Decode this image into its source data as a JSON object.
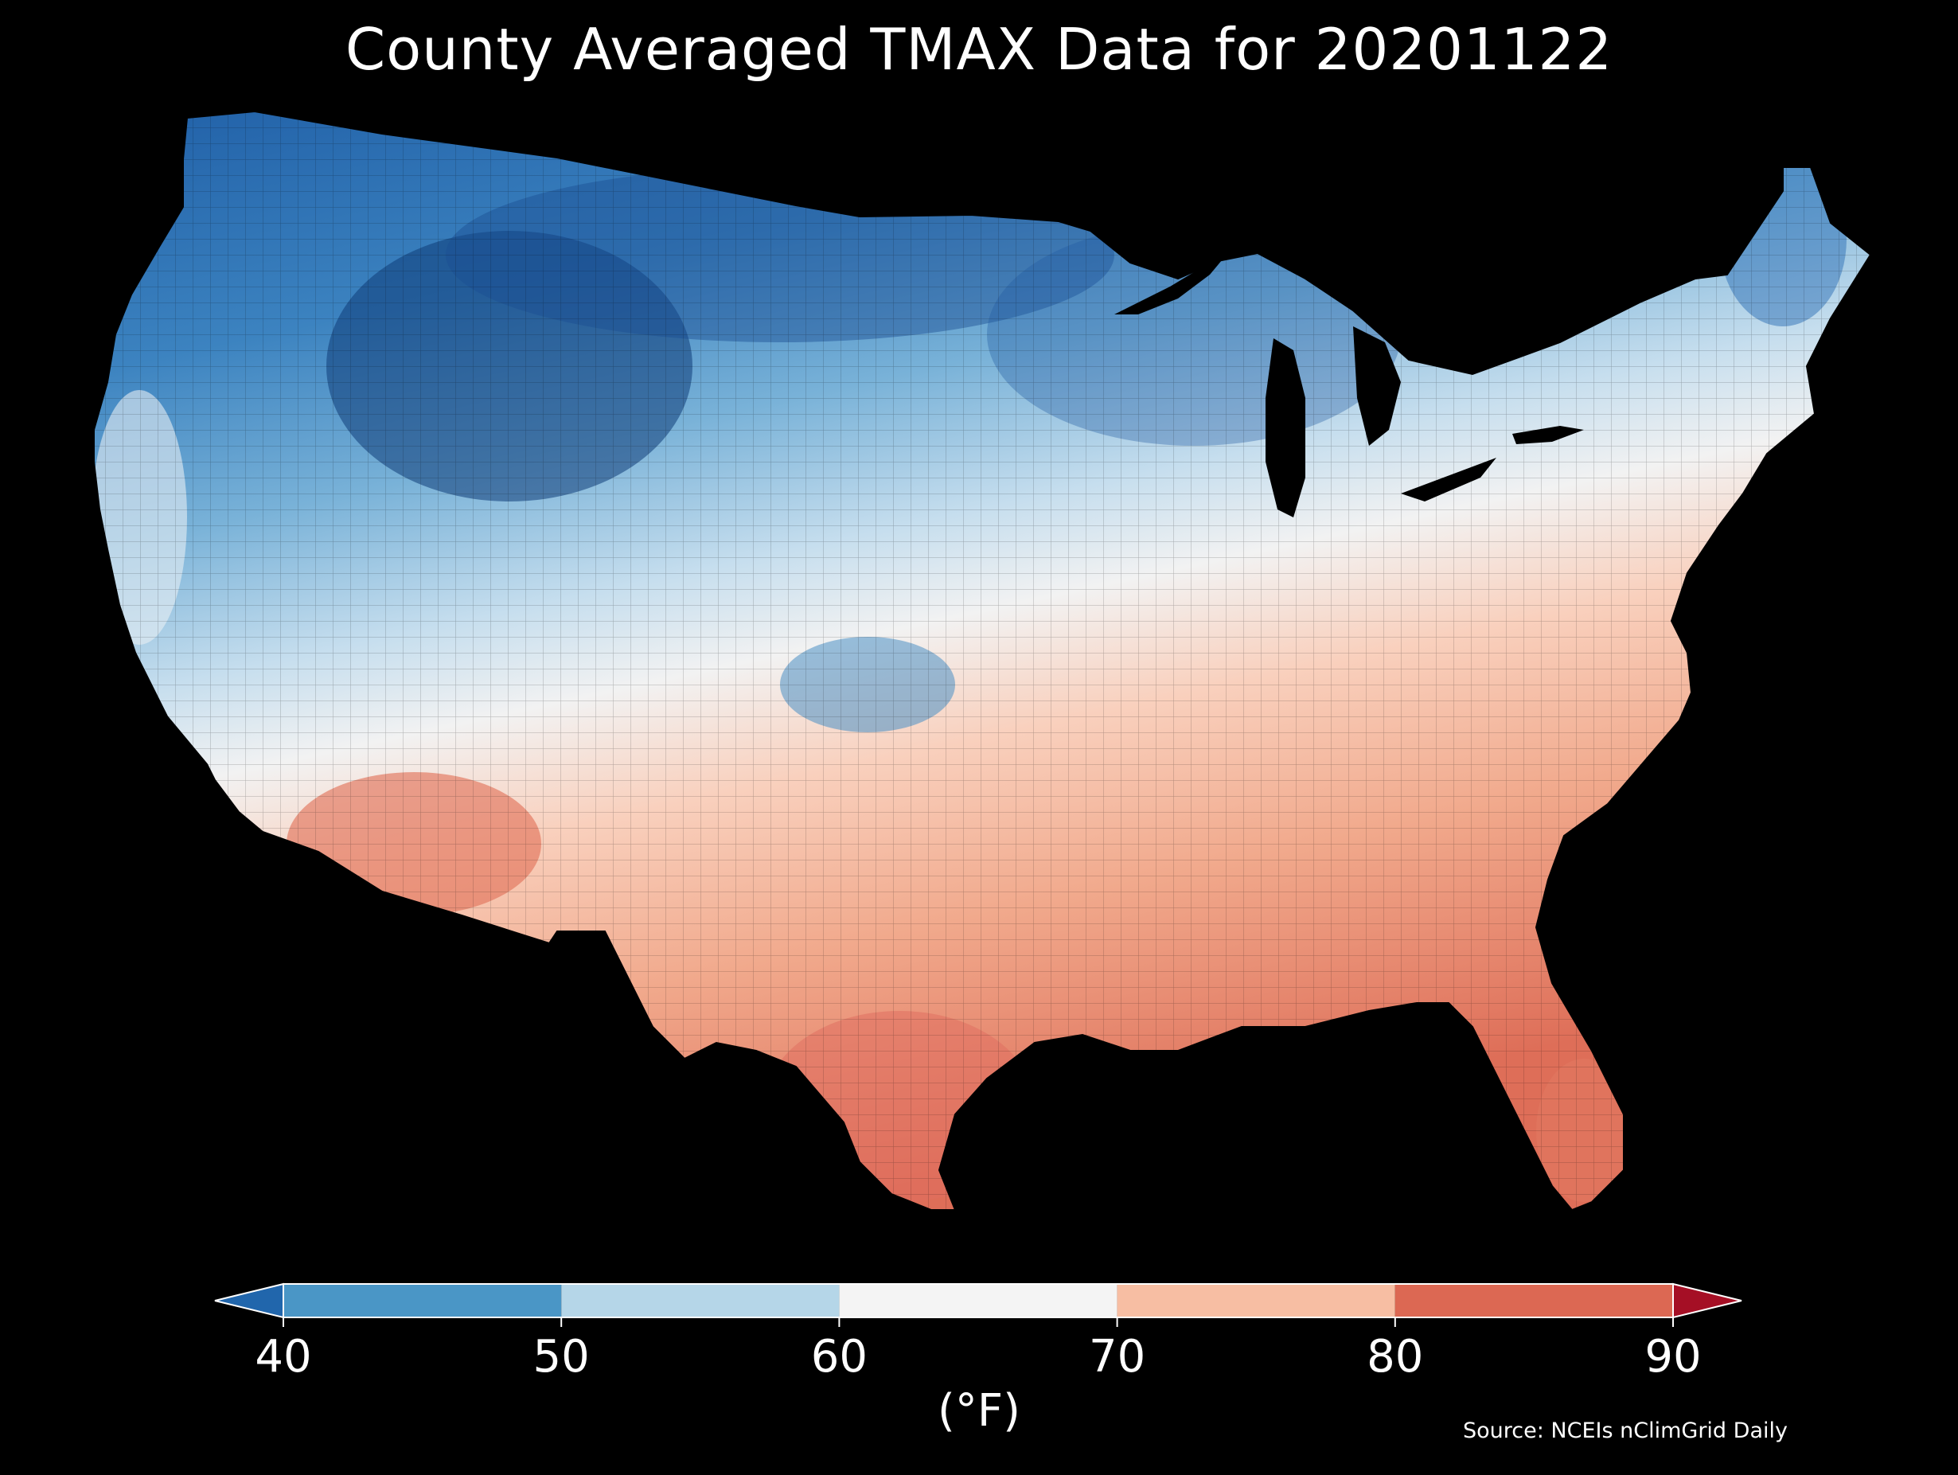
{
  "title": "County Averaged TMAX Data for 20201122",
  "colorbar": {
    "label": "(°F)",
    "ticks": [
      "40",
      "50",
      "60",
      "70",
      "80",
      "90"
    ],
    "bins": [
      {
        "from": 40,
        "to": 50,
        "color": "#4a96c6"
      },
      {
        "from": 50,
        "to": 60,
        "color": "#b5d6e8"
      },
      {
        "from": 60,
        "to": 70,
        "color": "#f4f4f4"
      },
      {
        "from": 70,
        "to": 80,
        "color": "#f7bea3"
      },
      {
        "from": 80,
        "to": 90,
        "color": "#dc6853"
      }
    ],
    "under_color": "#2166ac",
    "over_color": "#a50f25"
  },
  "source": "Source: NCEIs nClimGrid Daily",
  "palette": {
    "deep_blue": "#1a4f8f",
    "blue": "#2a6db3",
    "mid_blue": "#4a96c6",
    "light_blue": "#b5d6e8",
    "white": "#f4f4f4",
    "peach": "#f7bea3",
    "salmon": "#ec9a7d",
    "red": "#dc6853"
  }
}
